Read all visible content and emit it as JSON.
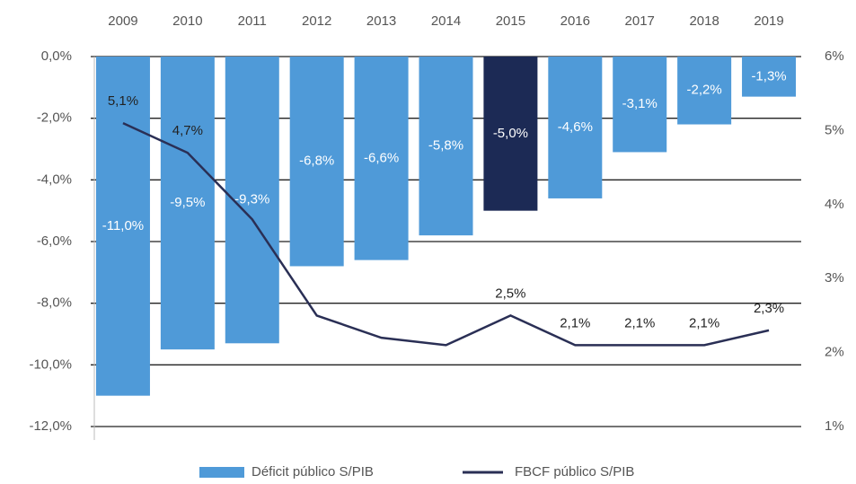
{
  "chart_data": {
    "type": "bar",
    "categories": [
      "2009",
      "2010",
      "2011",
      "2012",
      "2013",
      "2014",
      "2015",
      "2016",
      "2017",
      "2018",
      "2019"
    ],
    "series": [
      {
        "name": "Déficit público S/PIB",
        "type": "bar",
        "color": "#4f9ad8",
        "colors": [
          "#4f9ad8",
          "#4f9ad8",
          "#4f9ad8",
          "#4f9ad8",
          "#4f9ad8",
          "#4f9ad8",
          "#1c2a55",
          "#4f9ad8",
          "#4f9ad8",
          "#4f9ad8",
          "#4f9ad8"
        ],
        "values": [
          -11.0,
          -9.5,
          -9.3,
          -6.8,
          -6.6,
          -5.8,
          -5.0,
          -4.6,
          -3.1,
          -2.2,
          -1.3
        ],
        "value_labels": [
          "-11,0%",
          "-9,5%",
          "-9,3%",
          "-6,8%",
          "-6,6%",
          "-5,8%",
          "-5,0%",
          "-4,6%",
          "-3,1%",
          "-2,2%",
          "-1,3%"
        ]
      },
      {
        "name": "FBCF público S/PIB",
        "type": "line",
        "axis": "y2",
        "color": "#2a2f55",
        "values": [
          5.1,
          4.7,
          3.8,
          2.5,
          2.2,
          2.1,
          2.5,
          2.1,
          2.1,
          2.1,
          2.3
        ],
        "value_labels": [
          "5,1%",
          "4,7%",
          null,
          null,
          null,
          null,
          "2,5%",
          "2,1%",
          "2,1%",
          "2,1%",
          "2,3%"
        ]
      }
    ],
    "ylim": [
      -12,
      0
    ],
    "yticks": [
      {
        "value": 0,
        "label": "0,0%"
      },
      {
        "value": -2,
        "label": "-2,0%"
      },
      {
        "value": -4,
        "label": "-4,0%"
      },
      {
        "value": -6,
        "label": "-6,0%"
      },
      {
        "value": -8,
        "label": "-8,0%"
      },
      {
        "value": -10,
        "label": "-10,0%"
      },
      {
        "value": -12,
        "label": "-12,0%"
      }
    ],
    "y2lim": [
      1,
      6
    ],
    "y2ticks": [
      {
        "value": 6,
        "label": "6%"
      },
      {
        "value": 5,
        "label": "5%"
      },
      {
        "value": 4,
        "label": "4%"
      },
      {
        "value": 3,
        "label": "3%"
      },
      {
        "value": 2,
        "label": "2%"
      },
      {
        "value": 1,
        "label": "1%"
      }
    ],
    "grid": true,
    "legend": "bottom"
  }
}
